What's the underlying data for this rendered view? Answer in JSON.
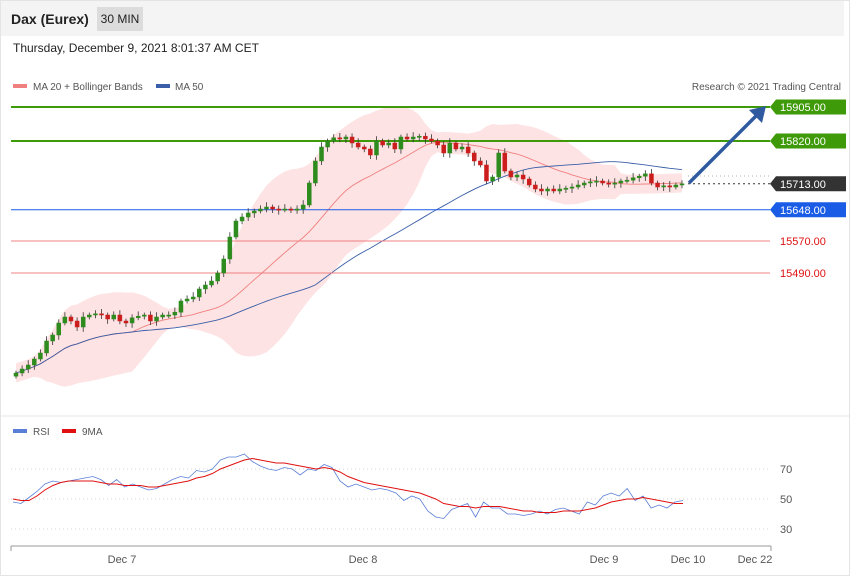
{
  "header": {
    "title": "Dax (Eurex)",
    "interval": "30 MIN",
    "datetime": "Thursday, December 9, 2021 8:01:37 AM CET"
  },
  "legend": {
    "ma20": "MA 20 + Bollinger Bands",
    "ma50": "MA 50",
    "copyright": "Research © 2021 Trading Central",
    "rsi": "RSI",
    "rsi_ma": "9MA"
  },
  "colors": {
    "resistance": "#3f9a0a",
    "support": "#1a5ce6",
    "support_faint": "#f08080",
    "ma20": "#f08080",
    "ma50": "#3a5ea8",
    "bollinger": "#fde3e3",
    "candle_up": "#2e8b1e",
    "candle_down": "#cc1d1d",
    "rsi": "#5b7fd6",
    "rsi_ma": "#e01010",
    "price": "#333333"
  },
  "chart_data": [
    {
      "type": "candlestick",
      "levels": [
        {
          "label": "15905.00",
          "value": 15905,
          "kind": "resistance"
        },
        {
          "label": "15820.00",
          "value": 15820,
          "kind": "resistance"
        },
        {
          "label": "15713.00",
          "value": 15713,
          "kind": "current"
        },
        {
          "label": "15648.00",
          "value": 15648,
          "kind": "pivot"
        },
        {
          "label": "15570.00",
          "value": 15570,
          "kind": "support"
        },
        {
          "label": "15490.00",
          "value": 15490,
          "kind": "support"
        }
      ],
      "close": [
        15240,
        15250,
        15260,
        15275,
        15290,
        15320,
        15335,
        15365,
        15380,
        15370,
        15355,
        15380,
        15385,
        15388,
        15385,
        15375,
        15385,
        15370,
        15365,
        15378,
        15382,
        15385,
        15370,
        15380,
        15385,
        15385,
        15392,
        15420,
        15425,
        15430,
        15450,
        15460,
        15470,
        15490,
        15525,
        15580,
        15620,
        15630,
        15640,
        15645,
        15650,
        15655,
        15650,
        15648,
        15650,
        15648,
        15650,
        15660,
        15715,
        15770,
        15805,
        15820,
        15828,
        15825,
        15830,
        15815,
        15805,
        15800,
        15785,
        15820,
        15810,
        15815,
        15800,
        15830,
        15825,
        15830,
        15832,
        15825,
        15820,
        15810,
        15790,
        15815,
        15800,
        15805,
        15790,
        15770,
        15760,
        15720,
        15730,
        15790,
        15745,
        15730,
        15735,
        15725,
        15710,
        15700,
        15695,
        15700,
        15695,
        15700,
        15702,
        15705,
        15710,
        15715,
        15718,
        15720,
        15715,
        15712,
        15715,
        15720,
        15722,
        15728,
        15732,
        15738,
        15715,
        15705,
        15708,
        15705,
        15710,
        15713
      ],
      "x_ticks": [
        "Dec 7",
        "Dec 8",
        "Dec 9",
        "Dec 10",
        "Dec 22"
      ],
      "y_min": 15230,
      "y_max": 15940
    },
    {
      "type": "line",
      "title": "",
      "series": [
        {
          "name": "RSI",
          "values": [
            48,
            47,
            51,
            55,
            60,
            62,
            61,
            62,
            63,
            64,
            65,
            63,
            59,
            63,
            58,
            60,
            58,
            56,
            57,
            60,
            63,
            65,
            64,
            69,
            68,
            70,
            76,
            78,
            78,
            80,
            75,
            72,
            70,
            69,
            71,
            70,
            66,
            70,
            69,
            73,
            71,
            62,
            58,
            60,
            58,
            56,
            57,
            56,
            54,
            49,
            52,
            50,
            42,
            38,
            37,
            43,
            45,
            47,
            38,
            48,
            44,
            44,
            40,
            40,
            39,
            40,
            42,
            40,
            43,
            44,
            42,
            40,
            48,
            46,
            52,
            54,
            52,
            57,
            49,
            52,
            44,
            46,
            44,
            48,
            49
          ]
        },
        {
          "name": "9MA",
          "values": [
            50,
            49,
            49,
            52,
            56,
            59,
            61,
            62,
            62,
            62,
            62,
            61,
            60,
            60,
            59,
            59,
            59,
            58,
            58,
            59,
            60,
            61,
            62,
            64,
            65,
            67,
            70,
            72,
            74,
            76,
            77,
            76,
            75,
            74,
            74,
            73,
            72,
            71,
            70,
            71,
            70,
            68,
            65,
            63,
            61,
            60,
            59,
            58,
            57,
            56,
            55,
            54,
            52,
            50,
            47,
            46,
            45,
            45,
            44,
            45,
            45,
            45,
            44,
            43,
            42,
            42,
            41,
            41,
            41,
            42,
            42,
            42,
            43,
            44,
            46,
            48,
            49,
            50,
            50,
            51,
            50,
            49,
            48,
            47,
            47
          ]
        }
      ],
      "y_ticks": [
        70,
        50,
        30
      ],
      "ylim": [
        20,
        80
      ]
    }
  ]
}
